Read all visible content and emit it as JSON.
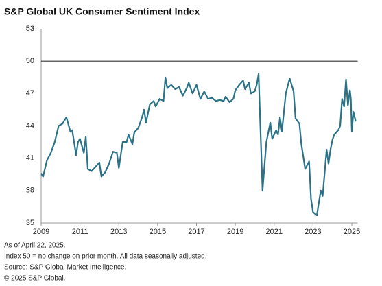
{
  "chart_data": {
    "type": "line",
    "title": "S&P Global UK Consumer Sentiment Index",
    "x": [
      2009.0,
      2009.1,
      2009.3,
      2009.5,
      2009.7,
      2009.9,
      2010.1,
      2010.3,
      2010.5,
      2010.6,
      2010.8,
      2010.9,
      2011.0,
      2011.2,
      2011.3,
      2011.4,
      2011.6,
      2011.8,
      2012.0,
      2012.1,
      2012.3,
      2012.5,
      2012.7,
      2012.9,
      2013.0,
      2013.2,
      2013.4,
      2013.5,
      2013.7,
      2013.8,
      2014.0,
      2014.2,
      2014.3,
      2014.4,
      2014.6,
      2014.8,
      2014.9,
      2015.1,
      2015.3,
      2015.4,
      2015.5,
      2015.7,
      2015.9,
      2016.1,
      2016.3,
      2016.5,
      2016.6,
      2016.8,
      2017.0,
      2017.2,
      2017.4,
      2017.6,
      2017.8,
      2018.0,
      2018.2,
      2018.4,
      2018.5,
      2018.7,
      2018.9,
      2019.0,
      2019.2,
      2019.4,
      2019.5,
      2019.7,
      2019.8,
      2020.0,
      2020.1,
      2020.2,
      2020.4,
      2020.6,
      2020.8,
      2020.9,
      2021.1,
      2021.2,
      2021.3,
      2021.4,
      2021.6,
      2021.8,
      2022.0,
      2022.1,
      2022.3,
      2022.4,
      2022.6,
      2022.8,
      2022.9,
      2023.0,
      2023.2,
      2023.4,
      2023.5,
      2023.7,
      2023.8,
      2023.9,
      2024.0,
      2024.1,
      2024.3,
      2024.4,
      2024.5,
      2024.6,
      2024.7,
      2024.8,
      2024.9,
      2024.95,
      2025.0,
      2025.08,
      2025.2
    ],
    "series": [
      {
        "color": "#2a7288",
        "values": [
          39.6,
          39.3,
          40.8,
          41.5,
          42.5,
          44.0,
          44.2,
          44.8,
          43.5,
          43.6,
          41.3,
          42.5,
          42.8,
          41.5,
          43.0,
          40.0,
          39.8,
          40.2,
          40.6,
          39.3,
          39.7,
          40.5,
          41.6,
          41.5,
          40.1,
          42.5,
          42.5,
          43.2,
          42.3,
          43.4,
          43.8,
          44.8,
          45.5,
          44.3,
          46.0,
          46.3,
          45.8,
          46.5,
          46.3,
          48.5,
          47.5,
          47.8,
          47.4,
          47.6,
          46.8,
          47.5,
          48.0,
          47.0,
          47.8,
          46.5,
          47.2,
          46.5,
          46.6,
          46.3,
          46.4,
          46.3,
          46.7,
          46.2,
          46.5,
          47.3,
          47.8,
          48.2,
          47.4,
          48.0,
          47.0,
          47.2,
          47.8,
          48.8,
          38.0,
          42.5,
          44.3,
          42.8,
          43.6,
          43.2,
          44.8,
          43.5,
          47.0,
          48.4,
          47.2,
          44.7,
          44.2,
          42.3,
          40.0,
          40.7,
          37.2,
          36.0,
          35.7,
          38.0,
          37.5,
          41.8,
          40.5,
          41.8,
          42.7,
          43.2,
          43.6,
          44.0,
          46.5,
          45.8,
          48.3,
          45.9,
          47.3,
          46.5,
          43.5,
          45.3,
          44.4
        ]
      }
    ],
    "xlim": [
      2009,
      2025.3
    ],
    "xticks": [
      2009,
      2011,
      2013,
      2015,
      2017,
      2019,
      2021,
      2023,
      2025
    ],
    "ylim": [
      35,
      53
    ],
    "yticks": [
      35,
      38,
      41,
      44,
      47,
      50,
      53
    ],
    "hline": 50,
    "notes": [
      "As of April 22, 2025.",
      "Index 50 = no change on prior month. All data seasonally adjusted.",
      "Source: S&P Global Market Intelligence.",
      "© 2025 S&P Global."
    ]
  }
}
